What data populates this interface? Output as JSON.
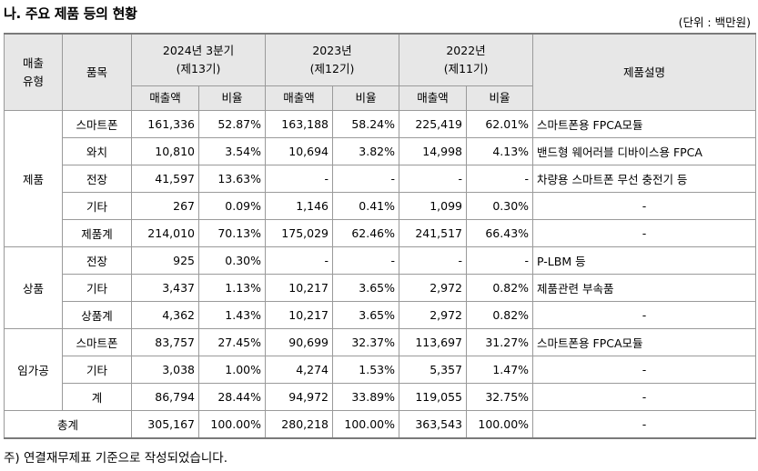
{
  "title": "나. 주요 제품 등의 현황",
  "unit": "(단위 : 백만원)",
  "header": {
    "type_line1": "매출",
    "type_line2": "유형",
    "item": "품목",
    "p1_line1": "2024년 3분기",
    "p1_line2": "(제13기)",
    "p2_line1": "2023년",
    "p2_line2": "(제12기)",
    "p3_line1": "2022년",
    "p3_line2": "(제11기)",
    "desc": "제품설명",
    "sales": "매출액",
    "ratio": "비율"
  },
  "groups": [
    {
      "label": "제품",
      "rows": [
        {
          "item": "스마트폰",
          "v": [
            "161,336",
            "52.87%",
            "163,188",
            "58.24%",
            "225,419",
            "62.01%"
          ],
          "desc": "스마트폰용 FPCA모듈"
        },
        {
          "item": "와치",
          "v": [
            "10,810",
            "3.54%",
            "10,694",
            "3.82%",
            "14,998",
            "4.13%"
          ],
          "desc": "밴드형 웨어러블 디바이스용 FPCA"
        },
        {
          "item": "전장",
          "v": [
            "41,597",
            "13.63%",
            "-",
            "-",
            "-",
            "-"
          ],
          "desc": "차량용 스마트폰 무선 충전기 등"
        },
        {
          "item": "기타",
          "v": [
            "267",
            "0.09%",
            "1,146",
            "0.41%",
            "1,099",
            "0.30%"
          ],
          "desc": "-"
        },
        {
          "item": "제품계",
          "v": [
            "214,010",
            "70.13%",
            "175,029",
            "62.46%",
            "241,517",
            "66.43%"
          ],
          "desc": "-"
        }
      ]
    },
    {
      "label": "상품",
      "rows": [
        {
          "item": "전장",
          "v": [
            "925",
            "0.30%",
            "-",
            "-",
            "-",
            "-"
          ],
          "desc": "P-LBM 등"
        },
        {
          "item": "기타",
          "v": [
            "3,437",
            "1.13%",
            "10,217",
            "3.65%",
            "2,972",
            "0.82%"
          ],
          "desc": "제품관련 부속품"
        },
        {
          "item": "상품계",
          "v": [
            "4,362",
            "1.43%",
            "10,217",
            "3.65%",
            "2,972",
            "0.82%"
          ],
          "desc": "-"
        }
      ]
    },
    {
      "label": "임가공",
      "rows": [
        {
          "item": "스마트폰",
          "v": [
            "83,757",
            "27.45%",
            "90,699",
            "32.37%",
            "113,697",
            "31.27%"
          ],
          "desc": "스마트폰용 FPCA모듈"
        },
        {
          "item": "기타",
          "v": [
            "3,038",
            "1.00%",
            "4,274",
            "1.53%",
            "5,357",
            "1.47%"
          ],
          "desc": "-"
        },
        {
          "item": "계",
          "v": [
            "86,794",
            "28.44%",
            "94,972",
            "33.89%",
            "119,055",
            "32.75%"
          ],
          "desc": "-"
        }
      ]
    }
  ],
  "total": {
    "label": "총계",
    "v": [
      "305,167",
      "100.00%",
      "280,218",
      "100.00%",
      "363,543",
      "100.00%"
    ],
    "desc": "-"
  },
  "note": "주) 연결재무제표 기준으로 작성되었습니다."
}
